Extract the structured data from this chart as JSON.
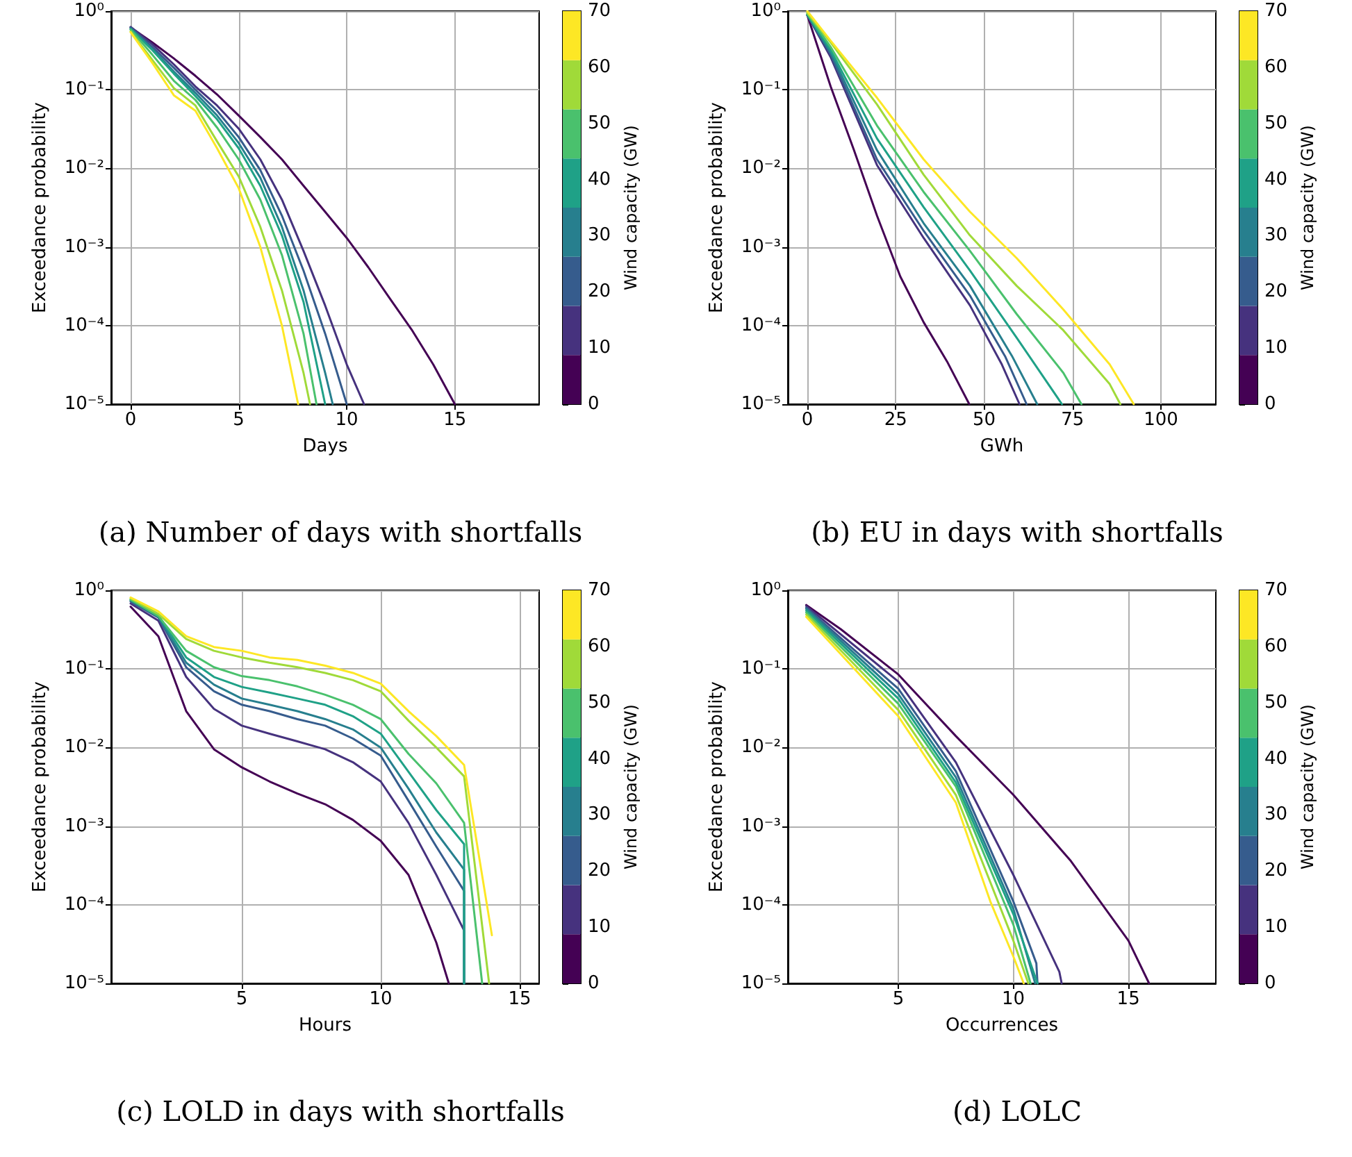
{
  "chart_data": [
    {
      "type": "line",
      "title": "(a) Number of days with shortfalls",
      "xlabel": "Days",
      "ylabel": "Exceedance probability",
      "clabel": "Wind capacity (GW)",
      "clim": [
        0,
        70
      ],
      "cticks": [
        0,
        10,
        20,
        30,
        40,
        50,
        60,
        70
      ],
      "log": "y",
      "grid": true,
      "xlim": [
        -0.9,
        18.9
      ],
      "xticks": [
        0,
        5,
        10,
        15
      ],
      "ylim": [
        1e-05,
        1
      ],
      "yticks": [
        {
          "value": 1e-05,
          "label": "10⁻⁵"
        },
        {
          "value": 0.0001,
          "label": "10⁻⁴"
        },
        {
          "value": 0.001,
          "label": "10⁻³"
        },
        {
          "value": 0.01,
          "label": "10⁻²"
        },
        {
          "value": 0.1,
          "label": "10⁻¹"
        },
        {
          "value": 1,
          "label": "10⁰"
        }
      ],
      "series": [
        {
          "color": "#440154",
          "x": [
            0,
            1,
            2,
            3,
            4,
            5,
            6,
            7,
            8,
            9,
            10,
            11,
            12,
            13,
            14,
            15
          ],
          "values": [
            0.62,
            0.4,
            0.25,
            0.15,
            0.087,
            0.047,
            0.025,
            0.013,
            0.006,
            0.0028,
            0.0013,
            0.00055,
            0.00022,
            8.9e-05,
            3.2e-05,
            1e-05
          ]
        },
        {
          "color": "#46327e",
          "x": [
            0,
            1,
            2,
            3,
            4,
            5,
            6,
            7,
            8,
            9,
            10,
            10.8
          ],
          "values": [
            0.63,
            0.38,
            0.21,
            0.11,
            0.063,
            0.032,
            0.013,
            0.004,
            0.00089,
            0.00018,
            3.2e-05,
            1e-05
          ]
        },
        {
          "color": "#365c8d",
          "x": [
            0,
            1,
            2,
            3,
            4,
            5,
            6,
            7,
            8,
            9,
            10
          ],
          "values": [
            0.62,
            0.35,
            0.19,
            0.1,
            0.054,
            0.025,
            0.0095,
            0.0025,
            0.0005,
            7.9e-05,
            1e-05
          ]
        },
        {
          "color": "#277f8e",
          "x": [
            0,
            1,
            2,
            3,
            4,
            5,
            6,
            7,
            8,
            9,
            9.35
          ],
          "values": [
            0.6,
            0.33,
            0.17,
            0.091,
            0.047,
            0.021,
            0.0076,
            0.0018,
            0.00028,
            2.5e-05,
            1e-05
          ]
        },
        {
          "color": "#1fa187",
          "x": [
            0,
            1,
            2,
            3,
            4,
            5,
            6,
            7,
            8,
            9
          ],
          "values": [
            0.59,
            0.32,
            0.16,
            0.083,
            0.042,
            0.018,
            0.006,
            0.0014,
            0.0002,
            1e-05
          ]
        },
        {
          "color": "#4ac16d",
          "x": [
            0,
            1,
            2,
            3,
            4,
            5,
            6,
            7,
            8,
            8.6
          ],
          "values": [
            0.58,
            0.28,
            0.13,
            0.074,
            0.033,
            0.013,
            0.004,
            0.00079,
            7.9e-05,
            1e-05
          ]
        },
        {
          "color": "#a0da39",
          "x": [
            0,
            1,
            2,
            3,
            4,
            5,
            6,
            7,
            8,
            8.3
          ],
          "values": [
            0.55,
            0.24,
            0.105,
            0.063,
            0.022,
            0.0079,
            0.0018,
            0.00028,
            2.5e-05,
            1e-05
          ]
        },
        {
          "color": "#fde725",
          "x": [
            0,
            1,
            2,
            3,
            4,
            5,
            6,
            7,
            7.75
          ],
          "values": [
            0.54,
            0.22,
            0.085,
            0.054,
            0.018,
            0.0056,
            0.001,
            0.0001,
            1e-05
          ]
        }
      ]
    },
    {
      "type": "line",
      "title": "(b) EU in days with shortfalls",
      "xlabel": "GWh",
      "ylabel": "Exceedance probability",
      "clabel": "Wind capacity (GW)",
      "clim": [
        0,
        70
      ],
      "cticks": [
        0,
        10,
        20,
        30,
        40,
        50,
        60,
        70
      ],
      "log": "y",
      "grid": true,
      "xlim": [
        -5.5,
        115.5
      ],
      "xticks": [
        0,
        25,
        50,
        75,
        100
      ],
      "ylim": [
        1e-05,
        1
      ],
      "yticks": [
        {
          "value": 1e-05,
          "label": "10⁻⁵"
        },
        {
          "value": 0.0001,
          "label": "10⁻⁴"
        },
        {
          "value": 0.001,
          "label": "10⁻³"
        },
        {
          "value": 0.01,
          "label": "10⁻²"
        },
        {
          "value": 0.1,
          "label": "10⁻¹"
        },
        {
          "value": 1,
          "label": "10⁰"
        }
      ],
      "series": [
        {
          "color": "#440154",
          "x": [
            0,
            6.6,
            13.2,
            19.7,
            26.3,
            32.9,
            39.5,
            45.8
          ],
          "values": [
            0.89,
            0.11,
            0.017,
            0.0025,
            0.00042,
            0.00011,
            3.5e-05,
            1e-05
          ]
        },
        {
          "color": "#46327e",
          "x": [
            0,
            6.6,
            19.7,
            32.9,
            46,
            55,
            60
          ],
          "values": [
            0.89,
            0.26,
            0.011,
            0.0013,
            0.00018,
            3.2e-05,
            1e-05
          ]
        },
        {
          "color": "#365c8d",
          "x": [
            0,
            6.6,
            19.7,
            32.9,
            46,
            56,
            62
          ],
          "values": [
            0.89,
            0.28,
            0.013,
            0.0016,
            0.00024,
            4e-05,
            1e-05
          ]
        },
        {
          "color": "#277f8e",
          "x": [
            0,
            6.6,
            19.7,
            32.9,
            46,
            58,
            65
          ],
          "values": [
            0.89,
            0.3,
            0.017,
            0.002,
            0.00032,
            4e-05,
            1e-05
          ]
        },
        {
          "color": "#1fa187",
          "x": [
            0,
            6.6,
            19.7,
            32.9,
            46,
            59.2,
            72
          ],
          "values": [
            0.91,
            0.32,
            0.024,
            0.0032,
            0.0005,
            7e-05,
            1e-05
          ]
        },
        {
          "color": "#4ac16d",
          "x": [
            0,
            6.6,
            19.7,
            32.9,
            46,
            59.2,
            72.4,
            77.5
          ],
          "values": [
            0.93,
            0.35,
            0.035,
            0.005,
            0.00089,
            0.00014,
            2.5e-05,
            1e-05
          ]
        },
        {
          "color": "#a0da39",
          "x": [
            0,
            6.6,
            19.7,
            32.9,
            46,
            59.2,
            72.4,
            85.5,
            88.5
          ],
          "values": [
            0.95,
            0.4,
            0.065,
            0.0083,
            0.0014,
            0.00032,
            8.7e-05,
            1.8e-05,
            1e-05
          ]
        },
        {
          "color": "#fde725",
          "x": [
            0,
            6.6,
            19.7,
            32.9,
            46,
            59.2,
            72.4,
            85.5,
            92.3
          ],
          "values": [
            1,
            0.42,
            0.079,
            0.013,
            0.0028,
            0.00072,
            0.00016,
            3.2e-05,
            1e-05
          ]
        }
      ]
    },
    {
      "type": "line",
      "title": "(c) LOLD in days with shortfalls",
      "xlabel": "Hours",
      "ylabel": "Exceedance probability",
      "clabel": "Wind capacity (GW)",
      "clim": [
        0,
        70
      ],
      "cticks": [
        0,
        10,
        20,
        30,
        40,
        50,
        60,
        70
      ],
      "log": "y",
      "grid": true,
      "xlim": [
        0.3,
        15.7
      ],
      "xticks": [
        5,
        10,
        15
      ],
      "ylim": [
        1e-05,
        1
      ],
      "yticks": [
        {
          "value": 1e-05,
          "label": "10⁻⁵"
        },
        {
          "value": 0.0001,
          "label": "10⁻⁴"
        },
        {
          "value": 0.001,
          "label": "10⁻³"
        },
        {
          "value": 0.01,
          "label": "10⁻²"
        },
        {
          "value": 0.1,
          "label": "10⁻¹"
        },
        {
          "value": 1,
          "label": "10⁰"
        }
      ],
      "series": [
        {
          "color": "#440154",
          "x": [
            1,
            2,
            3,
            4,
            5,
            6,
            7,
            8,
            9,
            10,
            11,
            12,
            12.45
          ],
          "values": [
            0.62,
            0.26,
            0.029,
            0.0095,
            0.0056,
            0.0037,
            0.0026,
            0.0019,
            0.0012,
            0.00065,
            0.00024,
            3.3e-05,
            1e-05
          ]
        },
        {
          "color": "#46327e",
          "x": [
            1,
            2,
            3,
            4,
            5,
            6,
            7,
            8,
            9,
            10,
            11,
            12,
            13,
            13
          ],
          "values": [
            0.68,
            0.41,
            0.079,
            0.031,
            0.019,
            0.015,
            0.012,
            0.0095,
            0.0065,
            0.0037,
            0.0011,
            0.00024,
            4.7e-05,
            1e-05
          ]
        },
        {
          "color": "#365c8d",
          "x": [
            1,
            2,
            3,
            4,
            5,
            6,
            7,
            8,
            9,
            10,
            11,
            12,
            13,
            13
          ],
          "values": [
            0.72,
            0.45,
            0.105,
            0.052,
            0.035,
            0.029,
            0.023,
            0.019,
            0.013,
            0.0079,
            0.0021,
            0.00055,
            0.00015,
            1e-05
          ]
        },
        {
          "color": "#277f8e",
          "x": [
            1,
            2,
            3,
            4,
            5,
            6,
            7,
            8,
            9,
            10,
            11,
            12,
            13,
            13
          ],
          "values": [
            0.74,
            0.46,
            0.12,
            0.063,
            0.042,
            0.035,
            0.029,
            0.023,
            0.017,
            0.01,
            0.003,
            0.00083,
            0.00028,
            1e-05
          ]
        },
        {
          "color": "#1fa187",
          "x": [
            1,
            2,
            3,
            4,
            5,
            6,
            7,
            8,
            9,
            10,
            11,
            12,
            13,
            13
          ],
          "values": [
            0.76,
            0.48,
            0.14,
            0.079,
            0.059,
            0.05,
            0.042,
            0.035,
            0.025,
            0.015,
            0.0049,
            0.0016,
            0.00059,
            1e-05
          ]
        },
        {
          "color": "#4ac16d",
          "x": [
            1,
            2,
            3,
            4,
            5,
            6,
            7,
            8,
            9,
            10,
            11,
            12,
            13,
            13.65
          ],
          "values": [
            0.76,
            0.47,
            0.17,
            0.105,
            0.081,
            0.072,
            0.06,
            0.047,
            0.035,
            0.023,
            0.0083,
            0.0035,
            0.0011,
            1e-05
          ]
        },
        {
          "color": "#a0da39",
          "x": [
            1,
            2,
            3,
            4,
            5,
            6,
            7,
            8,
            9,
            10,
            11,
            12,
            13,
            13.9
          ],
          "values": [
            0.79,
            0.5,
            0.24,
            0.17,
            0.14,
            0.12,
            0.105,
            0.089,
            0.072,
            0.052,
            0.022,
            0.01,
            0.0043,
            1e-05
          ]
        },
        {
          "color": "#fde725",
          "x": [
            1,
            2,
            3,
            4,
            5,
            6,
            7,
            8,
            9,
            10,
            11,
            12,
            13,
            14
          ],
          "values": [
            0.81,
            0.54,
            0.26,
            0.19,
            0.17,
            0.14,
            0.13,
            0.11,
            0.089,
            0.065,
            0.029,
            0.014,
            0.006,
            4.1e-05
          ]
        }
      ]
    },
    {
      "type": "line",
      "title": "(d) LOLC",
      "xlabel": "Occurrences",
      "ylabel": "Exceedance probability",
      "clabel": "Wind capacity (GW)",
      "clim": [
        0,
        70
      ],
      "cticks": [
        0,
        10,
        20,
        30,
        40,
        50,
        60,
        70
      ],
      "log": "y",
      "grid": true,
      "xlim": [
        0.2,
        18.8
      ],
      "xticks": [
        5,
        10,
        15
      ],
      "ylim": [
        1e-05,
        1
      ],
      "yticks": [
        {
          "value": 1e-05,
          "label": "10⁻⁵"
        },
        {
          "value": 0.0001,
          "label": "10⁻⁴"
        },
        {
          "value": 0.001,
          "label": "10⁻³"
        },
        {
          "value": 0.01,
          "label": "10⁻²"
        },
        {
          "value": 0.1,
          "label": "10⁻¹"
        },
        {
          "value": 1,
          "label": "10⁰"
        }
      ],
      "series": [
        {
          "color": "#440154",
          "x": [
            1,
            2.5,
            5,
            7.5,
            10,
            12.5,
            15,
            15.9
          ],
          "values": [
            0.65,
            0.32,
            0.085,
            0.014,
            0.0025,
            0.00036,
            3.5e-05,
            1e-05
          ]
        },
        {
          "color": "#46327e",
          "x": [
            1,
            5,
            7.5,
            10,
            12,
            12.1
          ],
          "values": [
            0.63,
            0.069,
            0.0065,
            0.00024,
            1.4e-05,
            1e-05
          ]
        },
        {
          "color": "#365c8d",
          "x": [
            1,
            5,
            7.5,
            10,
            11,
            11.05
          ],
          "values": [
            0.6,
            0.056,
            0.005,
            0.00011,
            1.8e-05,
            1e-05
          ]
        },
        {
          "color": "#277f8e",
          "x": [
            1,
            5,
            7.5,
            10,
            10.95
          ],
          "values": [
            0.58,
            0.048,
            0.0042,
            8.9e-05,
            1e-05
          ]
        },
        {
          "color": "#1fa187",
          "x": [
            1,
            5,
            7.5,
            10,
            11.05
          ],
          "values": [
            0.55,
            0.042,
            0.0036,
            7.6e-05,
            1e-05
          ]
        },
        {
          "color": "#4ac16d",
          "x": [
            1,
            5,
            7.5,
            10,
            10.75
          ],
          "values": [
            0.52,
            0.036,
            0.0032,
            5.6e-05,
            1e-05
          ]
        },
        {
          "color": "#a0da39",
          "x": [
            1,
            5,
            7.5,
            10,
            10.65
          ],
          "values": [
            0.49,
            0.03,
            0.0025,
            3.5e-05,
            1e-05
          ]
        },
        {
          "color": "#fde725",
          "x": [
            1,
            5,
            7.5,
            9,
            10,
            10.45
          ],
          "values": [
            0.46,
            0.025,
            0.002,
            0.00011,
            2.2e-05,
            1e-05
          ]
        }
      ]
    }
  ]
}
